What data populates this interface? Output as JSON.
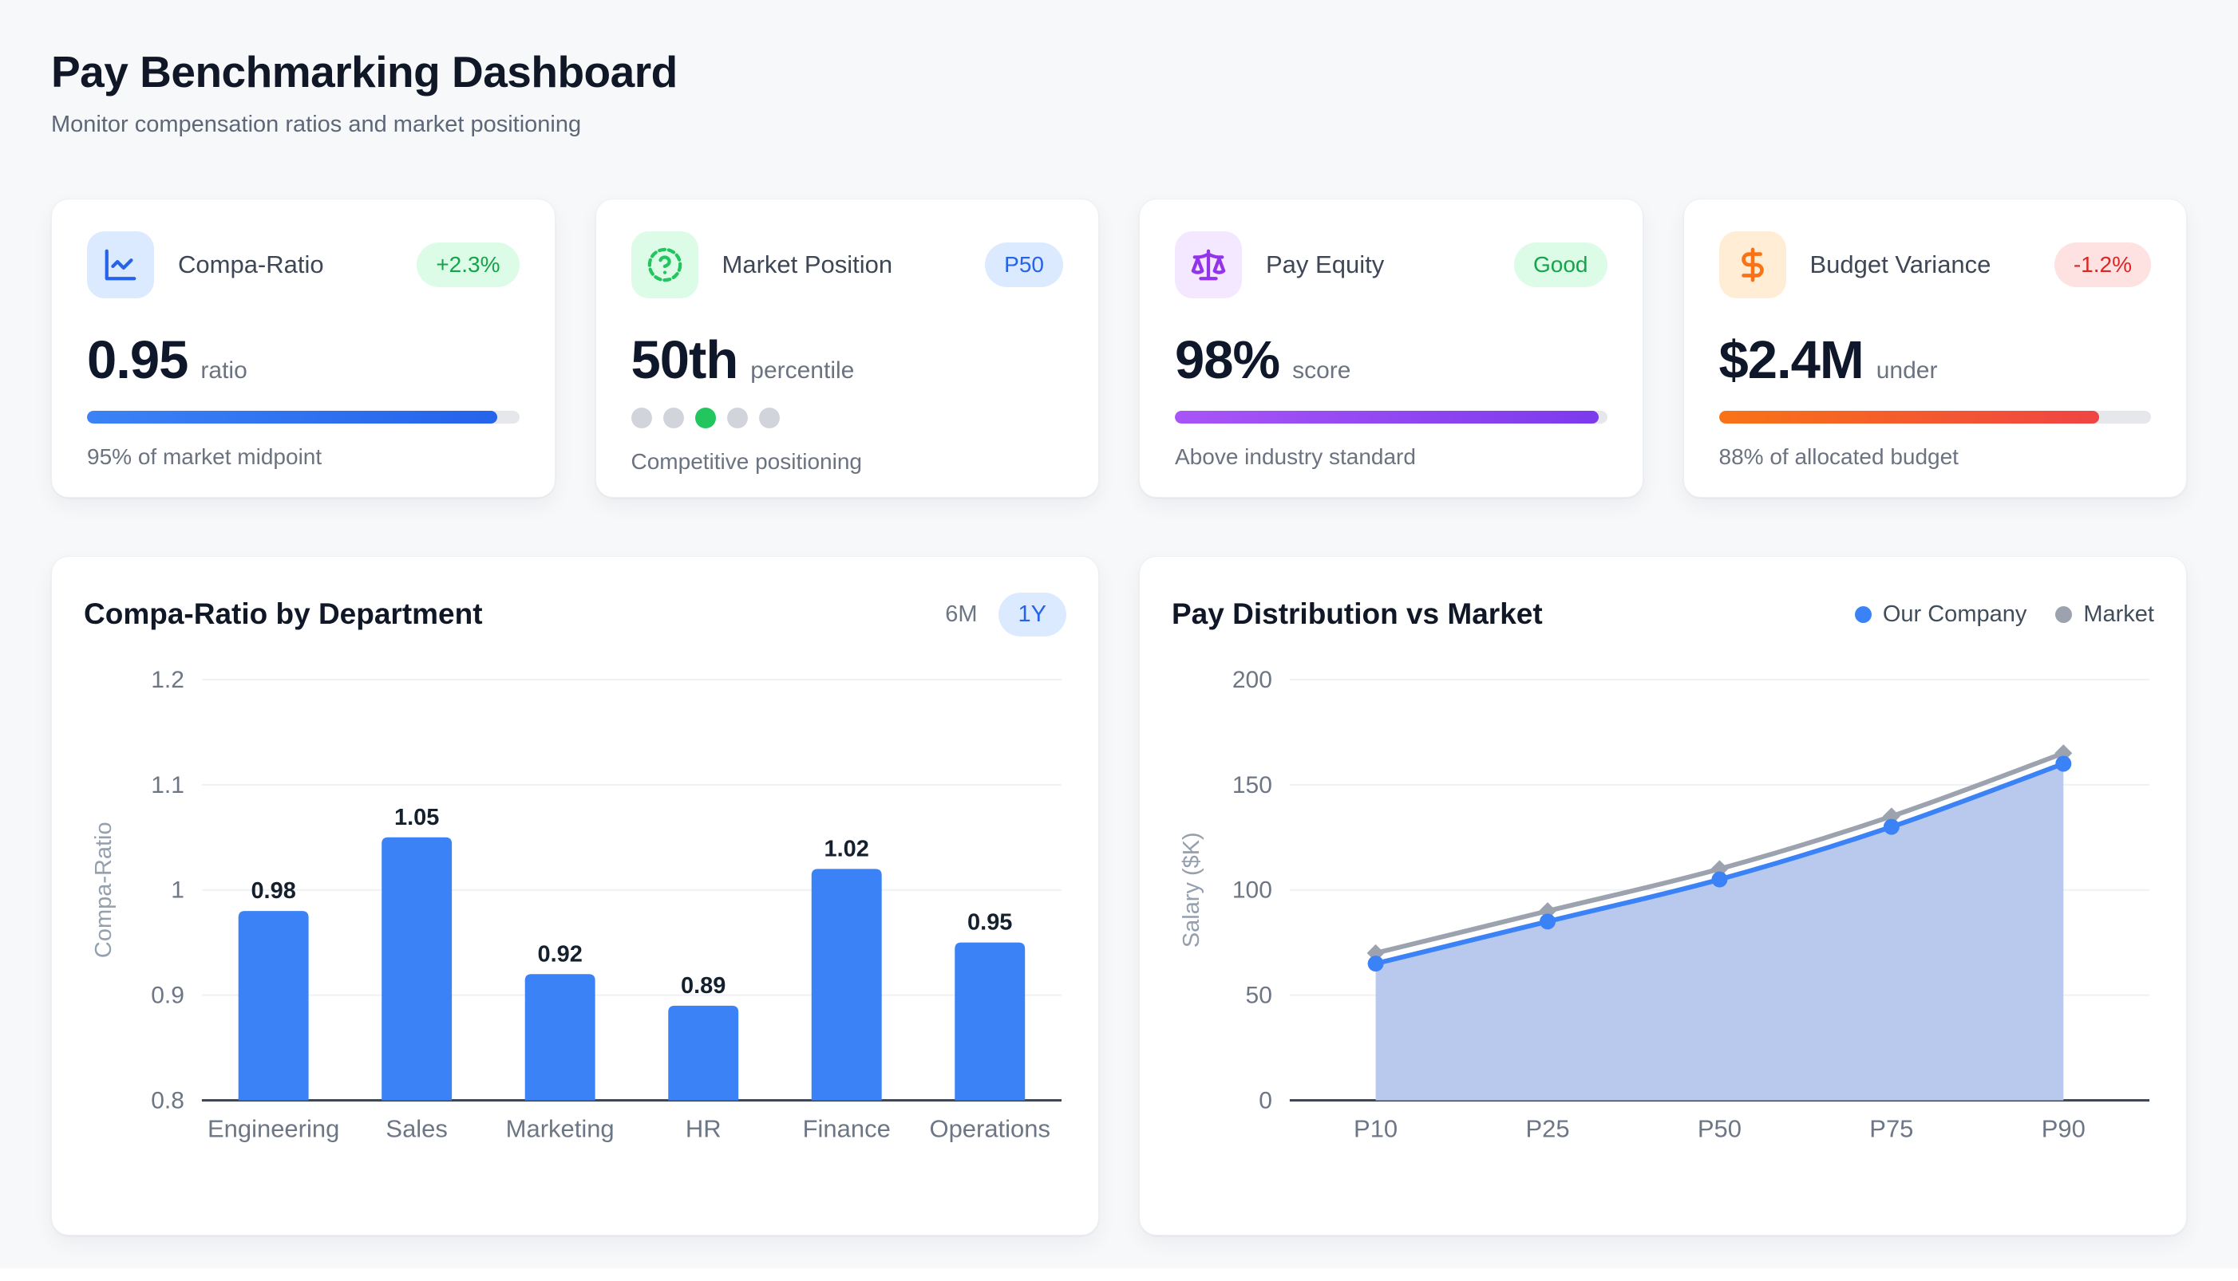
{
  "page": {
    "title": "Pay Benchmarking Dashboard",
    "subtitle": "Monitor compensation ratios and market positioning"
  },
  "kpis": [
    {
      "title": "Compa-Ratio",
      "icon": "chart-line-icon",
      "icon_color": "#2563eb",
      "icon_bg": "#dbeafe",
      "badge": {
        "label": "+2.3%",
        "bg": "#dcfce7",
        "fg": "#16a34a"
      },
      "value": "0.95",
      "unit": "ratio",
      "caption": "95% of market midpoint",
      "progress": {
        "type": "bar",
        "percent": 95,
        "colors": [
          "#3b82f6",
          "#2563eb"
        ],
        "track": "#e5e7eb"
      }
    },
    {
      "title": "Market Position",
      "icon": "circle-question-icon",
      "icon_color": "#22c55e",
      "icon_bg": "#dcfce7",
      "badge": {
        "label": "P50",
        "bg": "#dbeafe",
        "fg": "#2563eb"
      },
      "value": "50th",
      "unit": "percentile",
      "caption": "Competitive positioning",
      "progress": {
        "type": "dots",
        "count": 5,
        "active_index": 2,
        "active_color": "#22c55e",
        "inactive_color": "#d1d5db"
      }
    },
    {
      "title": "Pay Equity",
      "icon": "scale-icon",
      "icon_color": "#9333ea",
      "icon_bg": "#f3e8ff",
      "badge": {
        "label": "Good",
        "bg": "#dcfce7",
        "fg": "#16a34a"
      },
      "value": "98%",
      "unit": "score",
      "caption": "Above industry standard",
      "progress": {
        "type": "bar",
        "percent": 98,
        "colors": [
          "#a855f7",
          "#7c3aed"
        ],
        "track": "#e5e7eb"
      }
    },
    {
      "title": "Budget Variance",
      "icon": "dollar-icon",
      "icon_color": "#f97316",
      "icon_bg": "#ffedd5",
      "badge": {
        "label": "-1.2%",
        "bg": "#fee2e2",
        "fg": "#dc2626"
      },
      "value": "$2.4M",
      "unit": "under",
      "caption": "88% of allocated budget",
      "progress": {
        "type": "bar",
        "percent": 88,
        "colors": [
          "#f97316",
          "#ef4444"
        ],
        "track": "#e5e7eb"
      }
    }
  ],
  "chart_data": [
    {
      "type": "bar",
      "title": "Compa-Ratio by Department",
      "controls": {
        "options": [
          "6M",
          "1Y"
        ],
        "active": "1Y"
      },
      "categories": [
        "Engineering",
        "Sales",
        "Marketing",
        "HR",
        "Finance",
        "Operations"
      ],
      "values": [
        0.98,
        1.05,
        0.92,
        0.89,
        1.02,
        0.95
      ],
      "xlabel": "",
      "ylabel": "Compa-Ratio",
      "ylim": [
        0.8,
        1.2
      ],
      "yticks": [
        0.8,
        0.9,
        1,
        1.1,
        1.2
      ],
      "grid": true,
      "bar_color": "#3b82f6",
      "value_label_color": "#15202e",
      "axis_color": "#3f4754",
      "gridline_color": "#eef1f5",
      "tick_color": "#6d7684"
    },
    {
      "type": "area",
      "title": "Pay Distribution vs Market",
      "categories": [
        "P10",
        "P25",
        "P50",
        "P75",
        "P90"
      ],
      "series": [
        {
          "name": "Our Company",
          "values": [
            65,
            85,
            105,
            130,
            160
          ],
          "color": "#3b82f6",
          "marker": "circle",
          "area_fill": "#b9c9ee"
        },
        {
          "name": "Market",
          "values": [
            70,
            90,
            110,
            135,
            165
          ],
          "color": "#9ca3af",
          "marker": "diamond",
          "area_fill": null
        }
      ],
      "xlabel": "",
      "ylabel": "Salary ($K)",
      "ylim": [
        0,
        200
      ],
      "yticks": [
        0,
        50,
        100,
        150,
        200
      ],
      "grid": true,
      "legend_position": "top-right",
      "axis_color": "#3f4754",
      "gridline_color": "#eef1f5",
      "tick_color": "#6d7684"
    }
  ]
}
